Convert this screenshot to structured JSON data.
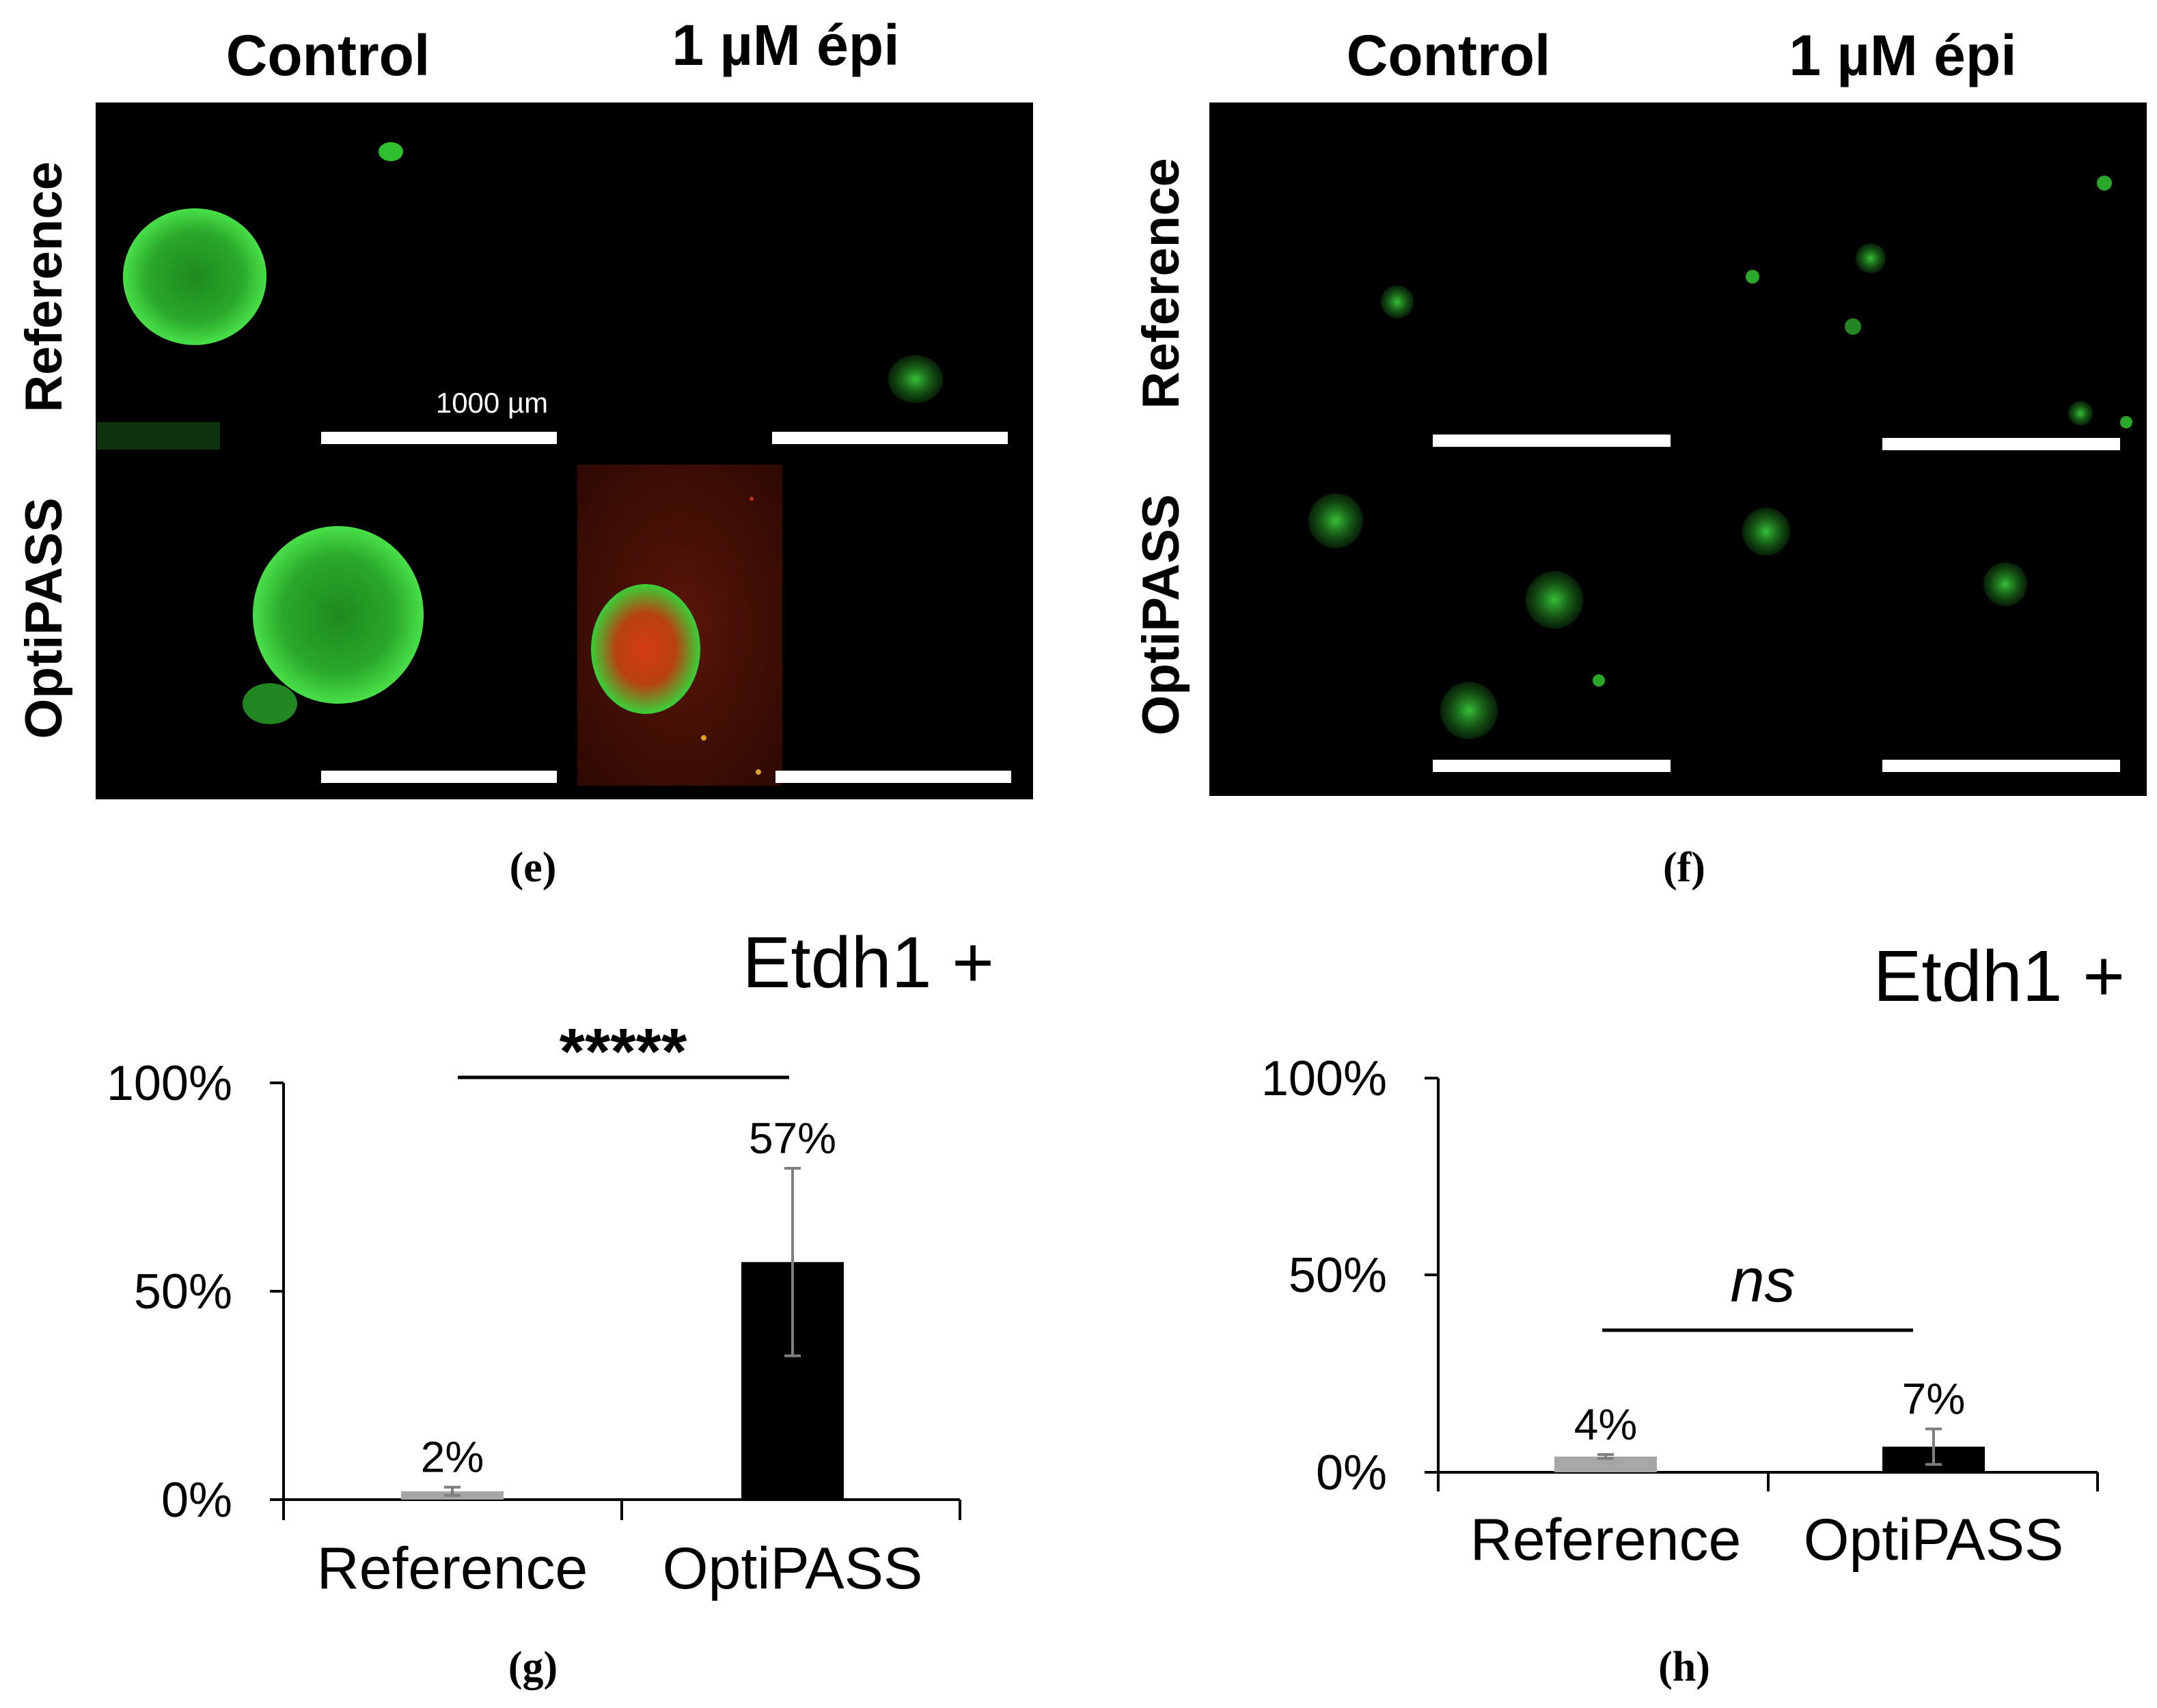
{
  "panel_e": {
    "label": "(e)",
    "col_headers": [
      "Control",
      "1 µM épi"
    ],
    "row_headers": [
      "Reference",
      "OptiPASS"
    ],
    "scale_label": "1000 µm",
    "colors": {
      "green": "#2fbf2f",
      "red": "#c0341e",
      "bg": "#000000"
    }
  },
  "panel_f": {
    "label": "(f)",
    "col_headers": [
      "Control",
      "1 µM épi"
    ],
    "row_headers": [
      "Reference",
      "OptiPASS"
    ],
    "colors": {
      "green": "#2fbf2f",
      "bg": "#000000"
    }
  },
  "chart_data": [
    {
      "panel": "(g)",
      "type": "bar",
      "title": "Etdh1 +",
      "categories": [
        "Reference",
        "OptiPASS"
      ],
      "values": [
        0.02,
        0.57
      ],
      "error": [
        0.01,
        0.225
      ],
      "data_labels": [
        "2%",
        "57%"
      ],
      "ylim": [
        0,
        1
      ],
      "yticks": [
        "0%",
        "50%",
        "100%"
      ],
      "bar_colors": [
        "#a6a6a6",
        "#000000"
      ],
      "significance": "*****"
    },
    {
      "panel": "(h)",
      "type": "bar",
      "title": "Etdh1 +",
      "categories": [
        "Reference",
        "OptiPASS"
      ],
      "values": [
        0.04,
        0.065
      ],
      "error": [
        0.005,
        0.045
      ],
      "data_labels": [
        "4%",
        "7%"
      ],
      "ylim": [
        0,
        1
      ],
      "yticks": [
        "0%",
        "50%",
        "100%"
      ],
      "bar_colors": [
        "#a6a6a6",
        "#000000"
      ],
      "significance": "ns"
    }
  ]
}
